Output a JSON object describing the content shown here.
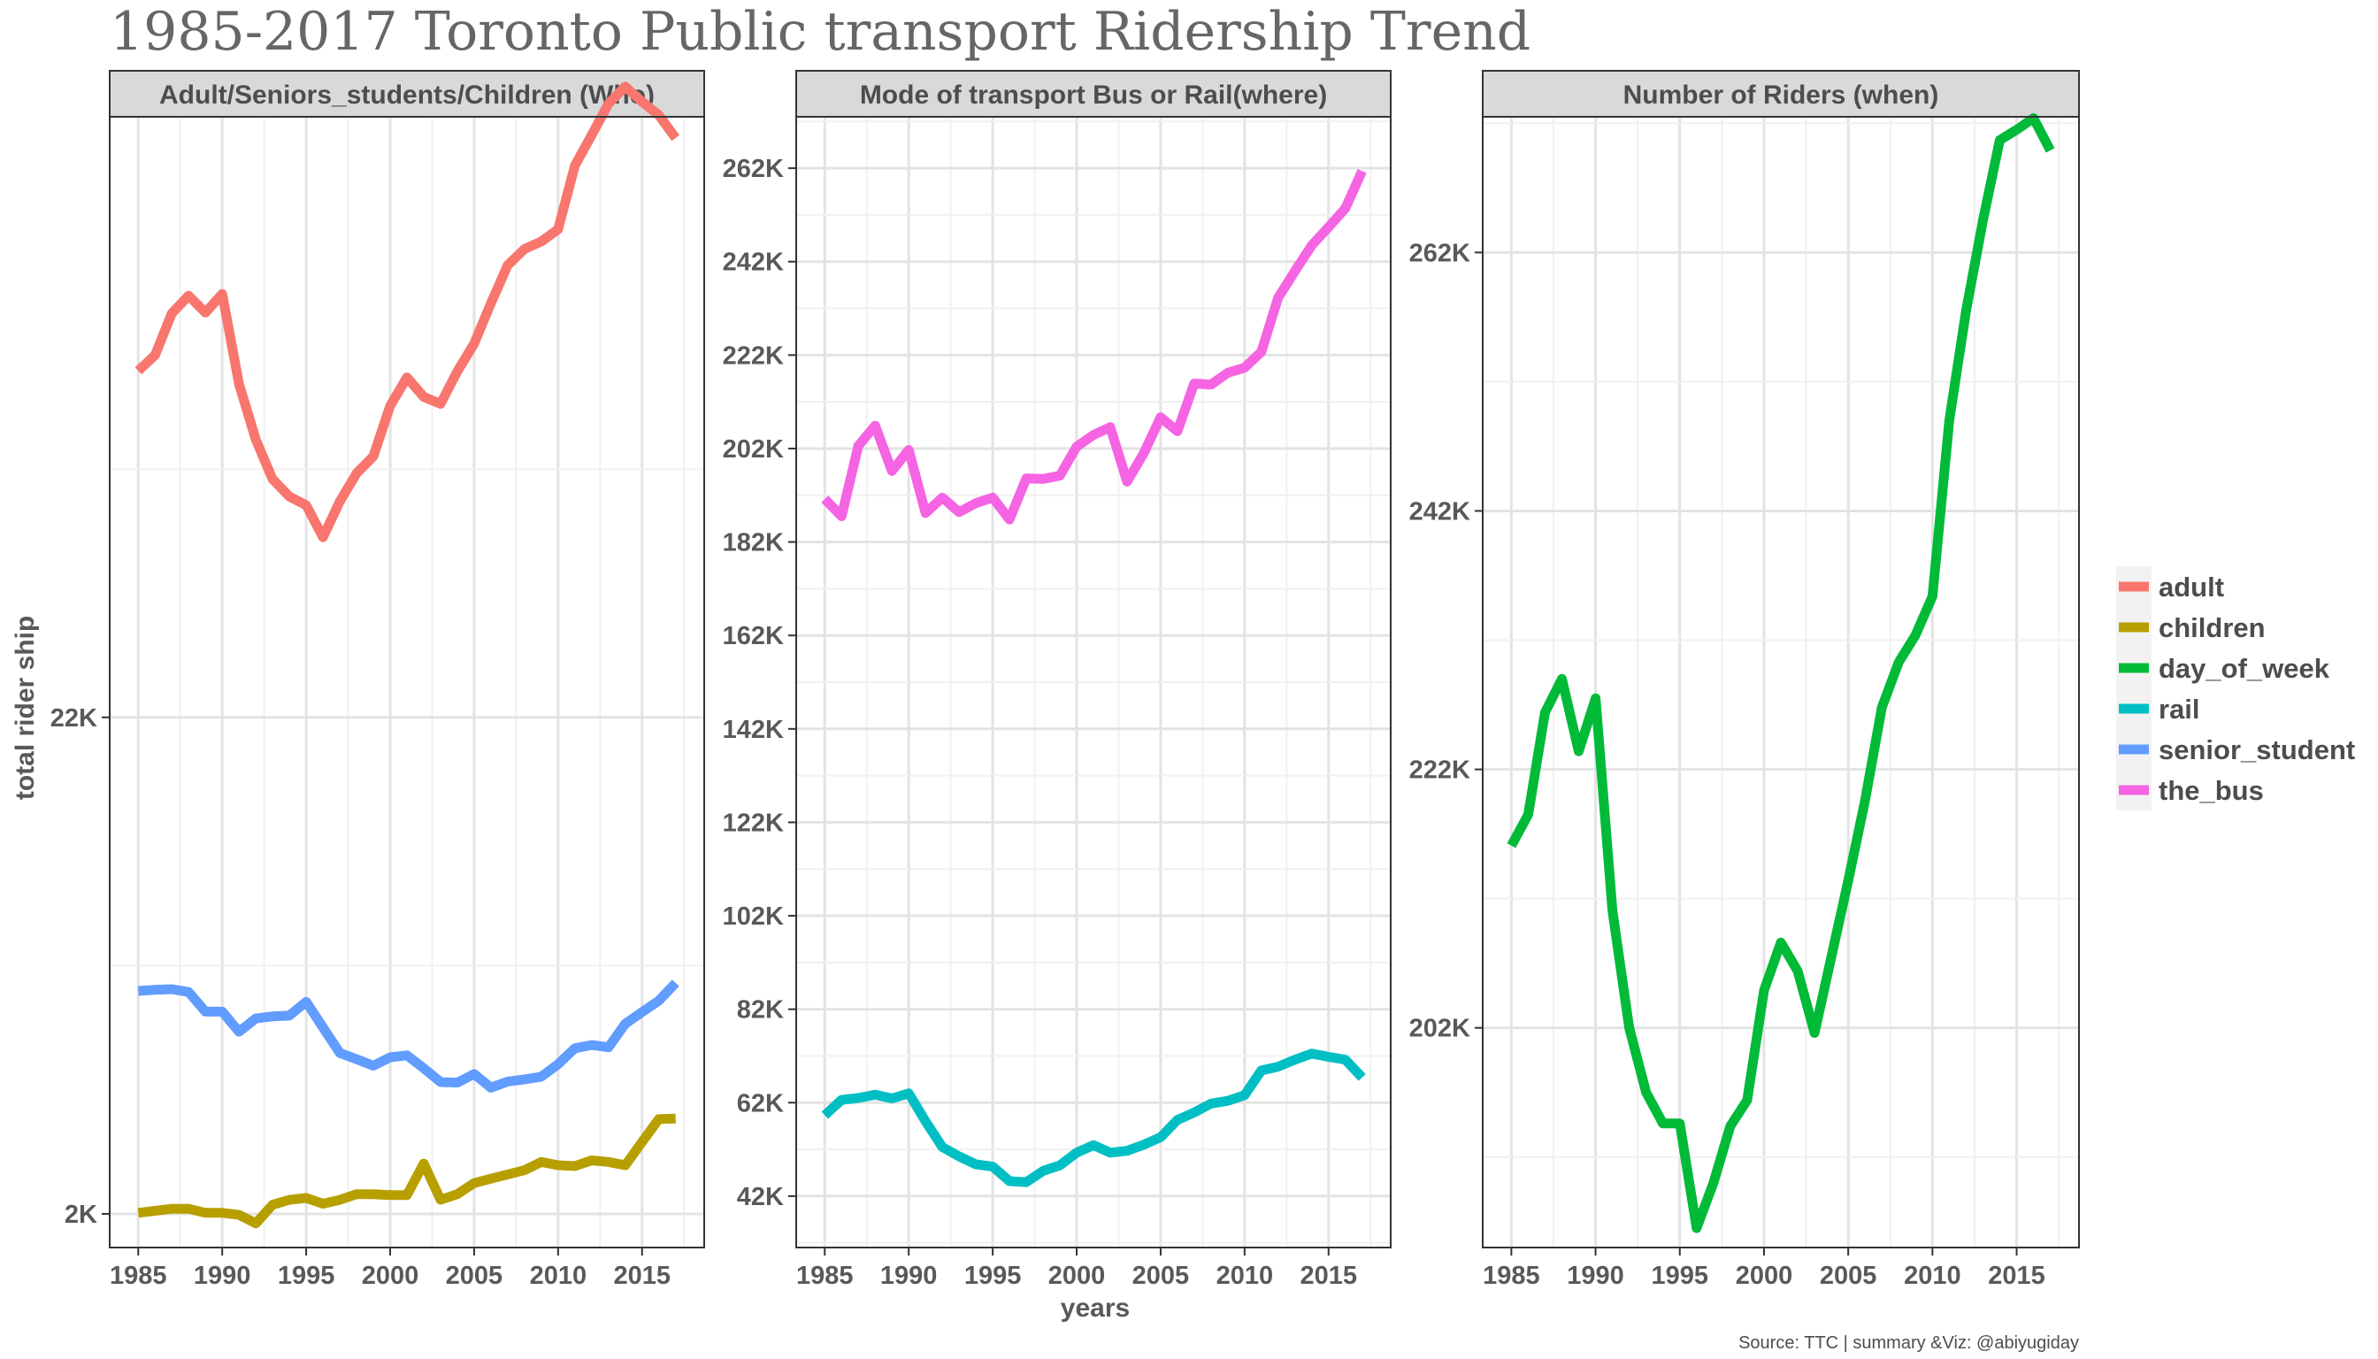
{
  "title": "1985-2017 Toronto Public transport Ridership Trend",
  "caption": "Source: TTC | summary &Viz: @abiyugiday",
  "axes": {
    "x_title": "years",
    "y_title": "total rider ship"
  },
  "legend": {
    "placement": "right",
    "entries": [
      {
        "name": "adult",
        "color": "#F8766D"
      },
      {
        "name": "children",
        "color": "#B79F00"
      },
      {
        "name": "day_of_week",
        "color": "#00BA38"
      },
      {
        "name": "rail",
        "color": "#00BFC4"
      },
      {
        "name": "senior_student",
        "color": "#619CFF"
      },
      {
        "name": "the_bus",
        "color": "#F564E3"
      }
    ]
  },
  "chart_data": [
    {
      "type": "line",
      "panel": "Adult/Seniors_students/Children (Who)",
      "x_ticks": [
        1985,
        1990,
        1995,
        2000,
        2005,
        2010,
        2015
      ],
      "y_scale": "log",
      "y_ticks": [
        {
          "value": 2000,
          "label": "2K"
        },
        {
          "value": 22000,
          "label": "22K"
        }
      ],
      "ylim": [
        1700,
        400000
      ],
      "grid": true,
      "x": [
        1985,
        1986,
        1987,
        1988,
        1989,
        1990,
        1991,
        1992,
        1993,
        1994,
        1995,
        1996,
        1997,
        1998,
        1999,
        2000,
        2001,
        2002,
        2003,
        2004,
        2005,
        2006,
        2007,
        2008,
        2009,
        2010,
        2011,
        2012,
        2013,
        2014,
        2015,
        2016,
        2017
      ],
      "series": [
        {
          "name": "adult",
          "values": [
            117300,
            126500,
            154800,
            168600,
            155400,
            170000,
            110000,
            84100,
            69500,
            63900,
            61300,
            52500,
            62400,
            71500,
            77600,
            99000,
            113600,
            103400,
            100000,
            116900,
            133700,
            162500,
            195400,
            211300,
            219000,
            232300,
            315900,
            366300,
            426200,
            462800,
            430000,
            403300,
            361000
          ]
        },
        {
          "name": "senior_student",
          "values": [
            5870,
            5900,
            5920,
            5840,
            5310,
            5310,
            4820,
            5140,
            5190,
            5210,
            5570,
            4920,
            4350,
            4220,
            4090,
            4260,
            4300,
            4040,
            3780,
            3770,
            3930,
            3680,
            3790,
            3830,
            3880,
            4120,
            4450,
            4520,
            4470,
            5010,
            5300,
            5600,
            6100
          ]
        },
        {
          "name": "children",
          "values": [
            2010,
            2030,
            2050,
            2050,
            2010,
            2010,
            1990,
            1910,
            2090,
            2140,
            2160,
            2100,
            2140,
            2200,
            2200,
            2190,
            2190,
            2550,
            2140,
            2200,
            2320,
            2370,
            2420,
            2470,
            2570,
            2530,
            2520,
            2590,
            2570,
            2530,
            2830,
            3160,
            3170
          ]
        }
      ]
    },
    {
      "type": "line",
      "panel": "Mode of transport Bus or Rail(where)",
      "x_ticks": [
        1985,
        1990,
        1995,
        2000,
        2005,
        2010,
        2015
      ],
      "y_ticks": [
        {
          "value": 42000,
          "label": "42K"
        },
        {
          "value": 62000,
          "label": "62K"
        },
        {
          "value": 82000,
          "label": "82K"
        },
        {
          "value": 102000,
          "label": "102K"
        },
        {
          "value": 122000,
          "label": "122K"
        },
        {
          "value": 142000,
          "label": "142K"
        },
        {
          "value": 162000,
          "label": "162K"
        },
        {
          "value": 182000,
          "label": "182K"
        },
        {
          "value": 202000,
          "label": "202K"
        },
        {
          "value": 222000,
          "label": "222K"
        },
        {
          "value": 242000,
          "label": "242K"
        },
        {
          "value": 262000,
          "label": "262K"
        }
      ],
      "ylim": [
        31000,
        273000
      ],
      "grid": true,
      "x": [
        1985,
        1986,
        1987,
        1988,
        1989,
        1990,
        1991,
        1992,
        1993,
        1994,
        1995,
        1996,
        1997,
        1998,
        1999,
        2000,
        2001,
        2002,
        2003,
        2004,
        2005,
        2006,
        2007,
        2008,
        2009,
        2010,
        2011,
        2012,
        2013,
        2014,
        2015,
        2016,
        2017
      ],
      "series": [
        {
          "name": "the_bus",
          "values": [
            191200,
            187500,
            202600,
            206900,
            197200,
            201700,
            188200,
            191500,
            188400,
            190300,
            191500,
            186800,
            195600,
            195500,
            196200,
            202400,
            204900,
            206600,
            194900,
            201000,
            208700,
            205700,
            215900,
            215700,
            218200,
            219300,
            222700,
            234300,
            240000,
            245500,
            249400,
            253400,
            261400
          ]
        },
        {
          "name": "rail",
          "values": [
            59300,
            62600,
            63000,
            63700,
            62900,
            64000,
            58000,
            52500,
            50500,
            48800,
            48300,
            45200,
            45000,
            47400,
            48600,
            51300,
            52900,
            51300,
            51700,
            53000,
            54600,
            58300,
            59900,
            61800,
            62400,
            63600,
            68900,
            69700,
            71200,
            72500,
            71800,
            71200,
            67400
          ]
        }
      ]
    },
    {
      "type": "line",
      "panel": "Number of Riders (when)",
      "x_ticks": [
        1985,
        1990,
        1995,
        2000,
        2005,
        2010,
        2015
      ],
      "y_ticks": [
        {
          "value": 202000,
          "label": "202K"
        },
        {
          "value": 222000,
          "label": "222K"
        },
        {
          "value": 242000,
          "label": "242K"
        },
        {
          "value": 262000,
          "label": "262K"
        }
      ],
      "ylim": [
        185000,
        272500
      ],
      "grid": true,
      "x": [
        1985,
        1986,
        1987,
        1988,
        1989,
        1990,
        1991,
        1992,
        1993,
        1994,
        1995,
        1996,
        1997,
        1998,
        1999,
        2000,
        2001,
        2002,
        2003,
        2004,
        2005,
        2006,
        2007,
        2008,
        2009,
        2010,
        2011,
        2012,
        2013,
        2014,
        2015,
        2016,
        2017
      ],
      "series": [
        {
          "name": "day_of_week",
          "values": [
            216100,
            218500,
            226400,
            229000,
            223400,
            227500,
            211100,
            202000,
            197000,
            194600,
            194600,
            186500,
            190000,
            194400,
            196400,
            204900,
            208600,
            206400,
            201600,
            207500,
            213400,
            219600,
            226800,
            230300,
            232400,
            235400,
            249000,
            257500,
            264500,
            270700,
            271500,
            272400,
            269900
          ]
        }
      ]
    }
  ]
}
